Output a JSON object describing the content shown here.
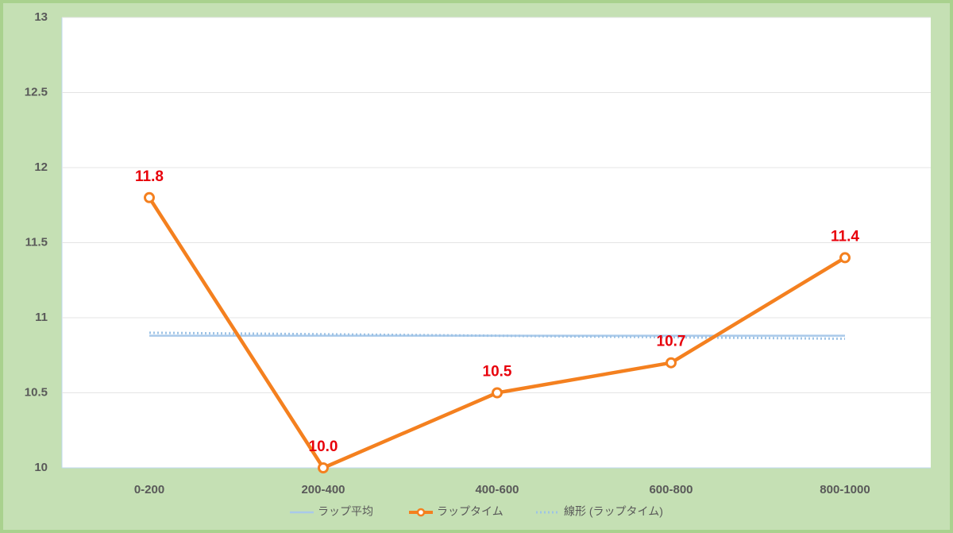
{
  "chart_data": {
    "type": "line",
    "categories": [
      "0-200",
      "200-400",
      "400-600",
      "600-800",
      "800-1000"
    ],
    "series": [
      {
        "name": "ラップ平均",
        "color": "#a9c9ea",
        "style": "solid",
        "values": [
          10.88,
          10.88,
          10.88,
          10.88,
          10.88
        ]
      },
      {
        "name": "ラップタイム",
        "color": "#f4801f",
        "style": "marker",
        "values": [
          11.8,
          10.0,
          10.5,
          10.7,
          11.4
        ],
        "value_labels": [
          "11.8",
          "10.0",
          "10.5",
          "10.7",
          "11.4"
        ]
      },
      {
        "name": "線形 (ラップタイム)",
        "color": "#9dc3e6",
        "style": "dotted",
        "values": [
          10.9,
          10.89,
          10.88,
          10.87,
          10.86
        ]
      }
    ],
    "ylim": [
      10,
      13
    ],
    "yticks": [
      10,
      10.5,
      11,
      11.5,
      12,
      12.5,
      13
    ],
    "grid": true,
    "legend": "bottom"
  }
}
